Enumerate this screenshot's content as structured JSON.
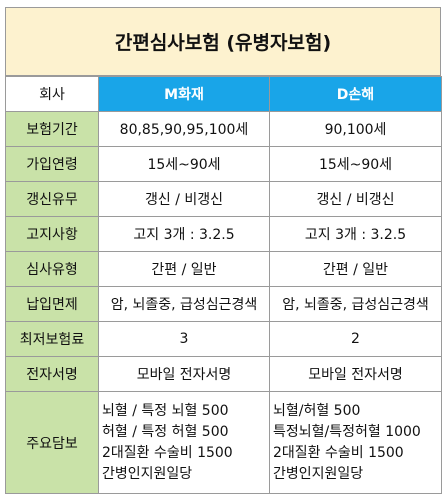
{
  "title": "간편심사보험 (유병자보험)",
  "header": {
    "label": "회사",
    "company_a": "M화재",
    "company_b": "D손해"
  },
  "rows": [
    {
      "label": "보험기간",
      "a": "80,85,90,95,100세",
      "b": "90,100세"
    },
    {
      "label": "가입연령",
      "a": "15세~90세",
      "b": "15세~90세"
    },
    {
      "label": "갱신유무",
      "a": "갱신 / 비갱신",
      "b": "갱신 / 비갱신"
    },
    {
      "label": "고지사항",
      "a": "고지 3개 : 3.2.5",
      "b": "고지 3개 : 3.2.5"
    },
    {
      "label": "심사유형",
      "a": "간편 / 일반",
      "b": "간편 / 일반"
    },
    {
      "label": "납입면제",
      "a": "암, 뇌졸중, 급성심근경색",
      "b": "암, 뇌졸중, 급성심근경색"
    },
    {
      "label": "최저보험료",
      "a": "3",
      "b": "2"
    },
    {
      "label": "전자서명",
      "a": "모바일 전자서명",
      "b": "모바일 전자서명"
    }
  ],
  "coverage": {
    "label": "주요담보",
    "a": [
      "뇌혈 / 특정 뇌혈 500",
      "허혈 / 특정 허혈 500",
      "2대질환 수술비 1500",
      "간병인지원일당"
    ],
    "b": [
      "뇌혈/허혈 500",
      "특정뇌혈/특정허혈 1000",
      "2대질환 수술비 1500",
      "간병인지원일당"
    ]
  }
}
